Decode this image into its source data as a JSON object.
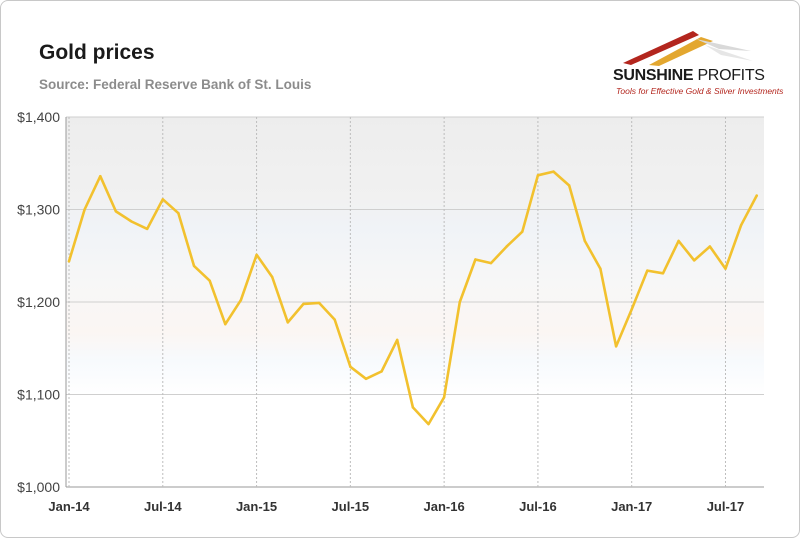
{
  "header": {
    "title": "Gold prices",
    "source": "Source: Federal Reserve Bank of St. Louis"
  },
  "logo": {
    "brand_bold": "SUNSHINE",
    "brand_thin": "PROFITS",
    "tagline": "Tools for Effective Gold & Silver Investments",
    "colors": [
      "#b3261e",
      "#e3a72f",
      "#c4c4c4"
    ]
  },
  "chart_data": {
    "type": "line",
    "title": "Gold prices",
    "xlabel": "",
    "ylabel": "",
    "ylim": [
      1000,
      1400
    ],
    "y_ticks": [
      1000,
      1100,
      1200,
      1300,
      1400
    ],
    "y_tick_labels": [
      "$1,000",
      "$1,100",
      "$1,200",
      "$1,300",
      "$1,400"
    ],
    "x_tick_labels": [
      "Jan-14",
      "Jul-14",
      "Jan-15",
      "Jul-15",
      "Jan-16",
      "Jul-16",
      "Jan-17",
      "Jul-17"
    ],
    "x_tick_month_index": [
      0,
      6,
      12,
      18,
      24,
      30,
      36,
      42
    ],
    "grid": true,
    "line_color": "#f2c12e",
    "series": [
      {
        "values": [
          1244,
          1300,
          1336,
          1298,
          1287,
          1279,
          1311,
          1296,
          1239,
          1223,
          1176,
          1202,
          1251,
          1227,
          1178,
          1198,
          1199,
          1181,
          1130,
          1117,
          1125,
          1159,
          1086,
          1068,
          1097,
          1200,
          1246,
          1242,
          1260,
          1276,
          1337,
          1341,
          1326,
          1266,
          1236,
          1152,
          1192,
          1234,
          1231,
          1266,
          1245,
          1260,
          1236,
          1283,
          1315
        ]
      }
    ]
  }
}
